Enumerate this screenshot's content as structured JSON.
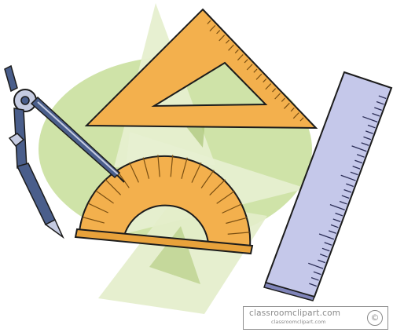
{
  "scene": {
    "subject": "geometry drawing tools clipart",
    "items": [
      {
        "name": "compass",
        "icon": "compass-icon"
      },
      {
        "name": "set square",
        "icon": "triangle-ruler-icon"
      },
      {
        "name": "protractor",
        "icon": "protractor-icon"
      },
      {
        "name": "ruler",
        "icon": "ruler-icon"
      }
    ]
  },
  "colors": {
    "background_ellipse": "#cfe3a8",
    "pale_triangle": "#e6efcf",
    "tool_orange": "#f3b04d",
    "tool_orange_dark": "#9b6a1e",
    "ruler_face": "#c5c8ea",
    "ruler_edge": "#7f84b9",
    "compass_blue": "#4a5e8b",
    "compass_light": "#c5cbe1",
    "outline": "#1c1c1c"
  },
  "watermark": {
    "site": "classroomclipart.com",
    "line2": "classroomclipart.com",
    "badge": "©"
  }
}
